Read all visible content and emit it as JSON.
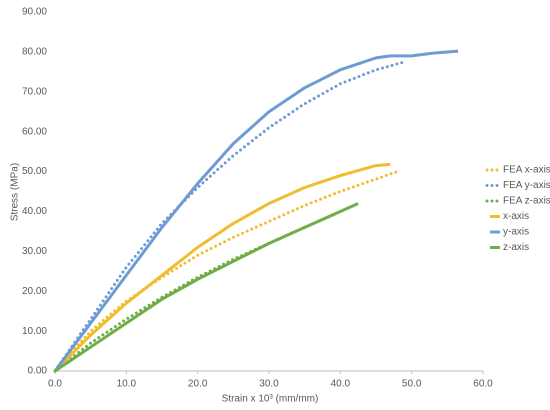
{
  "chart_data": {
    "type": "line",
    "x_label": "Strain x 10³ (mm/mm)",
    "y_label": "Stress (MPa)",
    "xlim": [
      0,
      60
    ],
    "xticks": [
      {
        "value": 0,
        "label": "0.0"
      },
      {
        "value": 10,
        "label": "10.0"
      },
      {
        "value": 20,
        "label": "20.0"
      },
      {
        "value": 30,
        "label": "30.0"
      },
      {
        "value": 40,
        "label": "40.0"
      },
      {
        "value": 50,
        "label": "50.0"
      },
      {
        "value": 60,
        "label": "60.0"
      }
    ],
    "ylim": [
      0,
      90
    ],
    "yticks": [
      {
        "value": 0,
        "label": "0.00"
      },
      {
        "value": 10,
        "label": "10.00"
      },
      {
        "value": 20,
        "label": "20.00"
      },
      {
        "value": 30,
        "label": "30.00"
      },
      {
        "value": 40,
        "label": "40.00"
      },
      {
        "value": 50,
        "label": "50.00"
      },
      {
        "value": 60,
        "label": "60.00"
      },
      {
        "value": 70,
        "label": "70.00"
      },
      {
        "value": 80,
        "label": "80.00"
      },
      {
        "value": 90,
        "label": "90.00"
      }
    ],
    "grid": false,
    "legend": "right",
    "series": [
      {
        "name": "FEA x-axis",
        "color": "#f0bd2c",
        "style": "dotted",
        "x": [
          0,
          5,
          10,
          15,
          20,
          25,
          30,
          35,
          40,
          48
        ],
        "values": [
          0,
          10,
          17.5,
          23.5,
          29,
          33.5,
          37.5,
          41.5,
          45,
          50
        ]
      },
      {
        "name": "FEA y-axis",
        "color": "#6e9bd3",
        "style": "dotted",
        "x": [
          0,
          5,
          10,
          15,
          20,
          25,
          30,
          35,
          40,
          45,
          49
        ],
        "values": [
          0,
          13,
          26,
          37,
          46,
          54,
          61,
          67,
          72,
          75.5,
          77.5
        ]
      },
      {
        "name": "FEA z-axis",
        "color": "#70ad47",
        "style": "dotted",
        "x": [
          0,
          5,
          10,
          15,
          20,
          25,
          30,
          35,
          39.5
        ],
        "values": [
          0,
          7,
          13,
          18.5,
          23.5,
          28,
          32,
          36,
          39.5
        ]
      },
      {
        "name": "x-axis",
        "color": "#f0bd2c",
        "style": "solid",
        "x": [
          0,
          5,
          10,
          15,
          20,
          25,
          30,
          35,
          40,
          45,
          47
        ],
        "values": [
          0,
          9,
          17,
          24,
          31,
          37,
          42,
          46,
          49,
          51.5,
          51.8
        ]
      },
      {
        "name": "y-axis",
        "color": "#6e9bd3",
        "style": "solid",
        "x": [
          0,
          5,
          10,
          15,
          20,
          25,
          30,
          35,
          40,
          45,
          47,
          50,
          53,
          56.5
        ],
        "values": [
          0,
          12,
          24,
          36,
          47,
          57,
          65,
          71,
          75.5,
          78.5,
          79,
          79,
          79.7,
          80.2
        ]
      },
      {
        "name": "z-axis",
        "color": "#70ad47",
        "style": "solid",
        "x": [
          0,
          5,
          10,
          15,
          20,
          25,
          30,
          35,
          40,
          42.5
        ],
        "values": [
          0,
          6,
          12,
          18,
          23,
          27.5,
          32,
          36,
          40,
          42
        ]
      }
    ]
  }
}
